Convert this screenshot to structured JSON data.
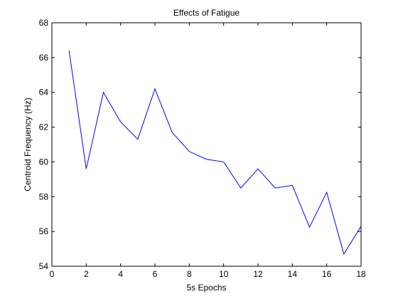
{
  "chart_data": {
    "type": "line",
    "title": "Effects of Fatigue",
    "xlabel": "5s Epochs",
    "ylabel": "Centroid Frequency (Hz)",
    "xlim": [
      0,
      18
    ],
    "ylim": [
      54,
      68
    ],
    "xticks": [
      0,
      2,
      4,
      6,
      8,
      10,
      12,
      14,
      16,
      18
    ],
    "yticks": [
      54,
      56,
      58,
      60,
      62,
      64,
      66,
      68
    ],
    "grid": false,
    "series": [
      {
        "color": "#0000ff",
        "x": [
          1,
          2,
          3,
          4,
          5,
          6,
          7,
          8,
          9,
          10,
          11,
          12,
          13,
          14,
          15,
          16,
          17,
          18
        ],
        "y": [
          66.4,
          59.6,
          64.0,
          62.3,
          61.3,
          64.2,
          61.7,
          60.6,
          60.15,
          60.0,
          58.5,
          59.6,
          58.5,
          58.65,
          56.25,
          58.25,
          54.7,
          56.3
        ]
      }
    ]
  }
}
